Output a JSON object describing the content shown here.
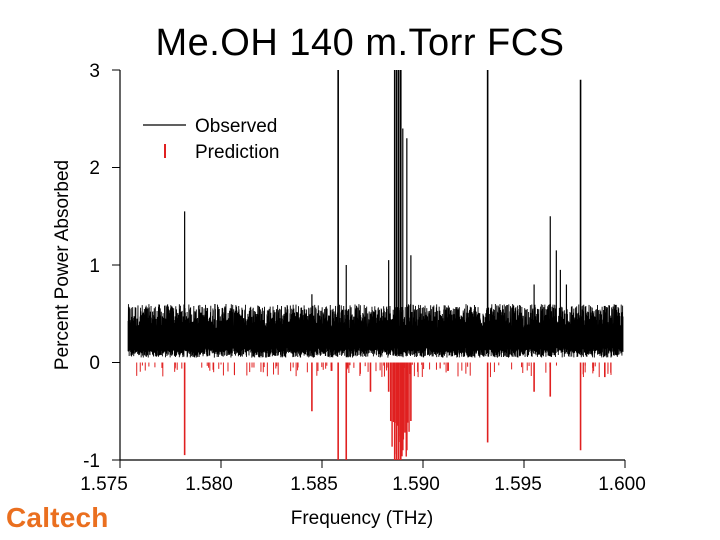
{
  "page": {
    "logo": "Caltech"
  },
  "chart_data": {
    "type": "line",
    "title": "Me.OH 140 m.Torr FCS",
    "xlabel": "Frequency (THz)",
    "ylabel": "Percent Power Absorbed",
    "xlim": [
      1.575,
      1.6
    ],
    "ylim": [
      -1,
      3
    ],
    "x_ticks": [
      "1.575",
      "1.580",
      "1.585",
      "1.590",
      "1.595",
      "1.600"
    ],
    "y_ticks": [
      "3",
      "2",
      "1",
      "0",
      "-1"
    ],
    "legend_position": "top-left",
    "colors": {
      "observed": "#000000",
      "prediction": "#e02020"
    },
    "series": [
      {
        "name": "Observed",
        "style": "line",
        "baseline_band": [
          0.1,
          0.4
        ],
        "peaks": [
          {
            "x": 1.5782,
            "y": 1.55
          },
          {
            "x": 1.5797,
            "y": 0.6
          },
          {
            "x": 1.5845,
            "y": 0.7
          },
          {
            "x": 1.5858,
            "y": 3.0
          },
          {
            "x": 1.5862,
            "y": 1.0
          },
          {
            "x": 1.5874,
            "y": 0.5
          },
          {
            "x": 1.5883,
            "y": 1.05
          },
          {
            "x": 1.5886,
            "y": 3.0
          },
          {
            "x": 1.5887,
            "y": 3.0
          },
          {
            "x": 1.5888,
            "y": 3.0
          },
          {
            "x": 1.5889,
            "y": 3.0
          },
          {
            "x": 1.589,
            "y": 2.4
          },
          {
            "x": 1.5892,
            "y": 2.3
          },
          {
            "x": 1.5894,
            "y": 1.1
          },
          {
            "x": 1.5932,
            "y": 3.0
          },
          {
            "x": 1.5955,
            "y": 0.8
          },
          {
            "x": 1.5963,
            "y": 1.5
          },
          {
            "x": 1.5966,
            "y": 1.15
          },
          {
            "x": 1.5968,
            "y": 0.95
          },
          {
            "x": 1.5971,
            "y": 0.8
          },
          {
            "x": 1.5978,
            "y": 2.9
          },
          {
            "x": 1.599,
            "y": 0.55
          }
        ]
      },
      {
        "name": "Prediction",
        "style": "stick",
        "sticks": [
          {
            "x": 1.5782,
            "y": -0.95
          },
          {
            "x": 1.5845,
            "y": -0.5
          },
          {
            "x": 1.5858,
            "y": -1.0
          },
          {
            "x": 1.5862,
            "y": -1.0
          },
          {
            "x": 1.5874,
            "y": -0.3
          },
          {
            "x": 1.5883,
            "y": -0.3
          },
          {
            "x": 1.5886,
            "y": -1.0
          },
          {
            "x": 1.5887,
            "y": -1.0
          },
          {
            "x": 1.5888,
            "y": -1.0
          },
          {
            "x": 1.5889,
            "y": -1.0
          },
          {
            "x": 1.589,
            "y": -0.9
          },
          {
            "x": 1.5892,
            "y": -0.9
          },
          {
            "x": 1.5894,
            "y": -0.6
          },
          {
            "x": 1.5932,
            "y": -0.82
          },
          {
            "x": 1.5955,
            "y": -0.3
          },
          {
            "x": 1.5963,
            "y": -0.35
          },
          {
            "x": 1.5978,
            "y": -0.9
          },
          {
            "x": 1.599,
            "y": -0.15
          }
        ],
        "small_stick_range": [
          -0.15,
          -0.02
        ]
      }
    ]
  }
}
